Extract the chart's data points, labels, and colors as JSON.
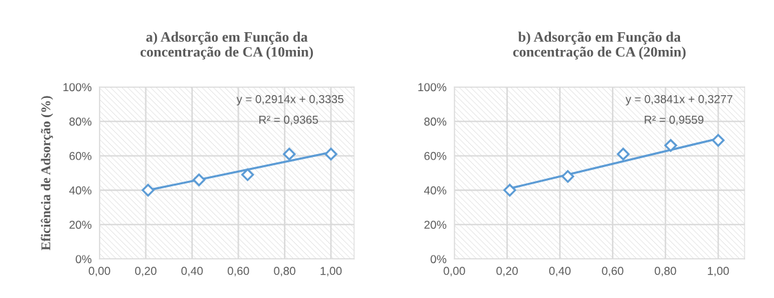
{
  "chart_data": [
    {
      "type": "scatter",
      "title": "a) Adsorção em Função da\nconcentração de CA (10min)",
      "ylabel": "Eficiência de Adsorção (%)",
      "series": [
        {
          "color": "#5b9bd5",
          "x": [
            0.21,
            0.43,
            0.64,
            0.82,
            1.0
          ],
          "values": [
            0.4,
            0.46,
            0.49,
            0.61,
            0.61
          ]
        },
        {
          "type": "line",
          "color": "#5b9bd5",
          "marker": "none",
          "x": [
            0.21,
            1.0
          ],
          "values": [
            0.4,
            0.62
          ]
        }
      ],
      "marker": "diamond",
      "xlim": [
        0,
        1.1
      ],
      "ylim": [
        0,
        1
      ],
      "xticks": [
        {
          "value": 0,
          "label": "0,00"
        },
        {
          "value": 0.2,
          "label": "0,20"
        },
        {
          "value": 0.4,
          "label": "0,40"
        },
        {
          "value": 0.6,
          "label": "0,60"
        },
        {
          "value": 0.8,
          "label": "0,80"
        },
        {
          "value": 1.0,
          "label": "1,00"
        }
      ],
      "yticks": [
        {
          "value": 0,
          "label": "0%"
        },
        {
          "value": 0.2,
          "label": "20%"
        },
        {
          "value": 0.4,
          "label": "40%"
        },
        {
          "value": 0.6,
          "label": "60%"
        },
        {
          "value": 0.8,
          "label": "80%"
        },
        {
          "value": 1.0,
          "label": "100%"
        }
      ],
      "grid": true,
      "annotations": [
        "y = 0,2914x + 0,3335",
        "R² = 0,9365"
      ]
    },
    {
      "type": "scatter",
      "title": "b) Adsorção em Função da\nconcentração de CA (20min)",
      "series": [
        {
          "color": "#5b9bd5",
          "x": [
            0.21,
            0.43,
            0.64,
            0.82,
            1.0
          ],
          "values": [
            0.4,
            0.48,
            0.61,
            0.66,
            0.69
          ]
        },
        {
          "type": "line",
          "color": "#5b9bd5",
          "marker": "none",
          "x": [
            0.21,
            1.0
          ],
          "values": [
            0.41,
            0.7
          ]
        }
      ],
      "marker": "diamond",
      "xlim": [
        0,
        1.1
      ],
      "ylim": [
        0,
        1
      ],
      "xticks": [
        {
          "value": 0,
          "label": "0,00"
        },
        {
          "value": 0.2,
          "label": "0,20"
        },
        {
          "value": 0.4,
          "label": "0,40"
        },
        {
          "value": 0.6,
          "label": "0,60"
        },
        {
          "value": 0.8,
          "label": "0,80"
        },
        {
          "value": 1.0,
          "label": "1,00"
        }
      ],
      "yticks": [
        {
          "value": 0,
          "label": "0%"
        },
        {
          "value": 0.2,
          "label": "20%"
        },
        {
          "value": 0.4,
          "label": "40%"
        },
        {
          "value": 0.6,
          "label": "60%"
        },
        {
          "value": 0.8,
          "label": "80%"
        },
        {
          "value": 1.0,
          "label": "100%"
        }
      ],
      "grid": true,
      "annotations": [
        "y = 0,3841x + 0,3277",
        "R² = 0,9559"
      ]
    }
  ]
}
